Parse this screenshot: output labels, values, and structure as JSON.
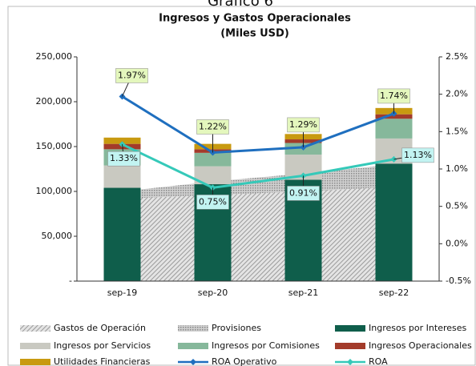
{
  "chart_data": {
    "type": "combo",
    "heading": "Gráfico 6",
    "title": "Ingresos y Gastos Operacionales",
    "subtitle": "(Miles USD)",
    "categories": [
      "sep-19",
      "sep-20",
      "sep-21",
      "sep-22"
    ],
    "ylim": [
      0,
      250000
    ],
    "yticks": [
      {
        "value": 0,
        "label": "-"
      },
      {
        "value": 50000,
        "label": "50,000"
      },
      {
        "value": 100000,
        "label": "100,000"
      },
      {
        "value": 150000,
        "label": "150,000"
      },
      {
        "value": 200000,
        "label": "200,000"
      },
      {
        "value": 250000,
        "label": "250,000"
      }
    ],
    "y2lim": [
      -0.5,
      2.5
    ],
    "y2ticks": [
      {
        "value": -0.5,
        "label": "-0.5%"
      },
      {
        "value": 0,
        "label": "0.0%"
      },
      {
        "value": 0.5,
        "label": "0.5%"
      },
      {
        "value": 1,
        "label": "1.0%"
      },
      {
        "value": 1.5,
        "label": "1.5%"
      },
      {
        "value": 2,
        "label": "2.0%"
      },
      {
        "value": 2.5,
        "label": "2.5%"
      }
    ],
    "series": [
      {
        "name": "Gastos de Operación",
        "type": "area",
        "color": "#9a9a9a",
        "values": [
          92000,
          96000,
          100000,
          105000
        ]
      },
      {
        "name": "Provisiones",
        "type": "area",
        "color": "#b4b4b4",
        "values": [
          8000,
          15000,
          20000,
          25000
        ]
      },
      {
        "name": "Ingresos por Intereses",
        "type": "bar",
        "color": "#0f5e4b",
        "values": [
          104000,
          108000,
          113000,
          131000
        ]
      },
      {
        "name": "Ingresos por Servicios",
        "type": "bar",
        "color": "#c9c9c1",
        "values": [
          25000,
          20000,
          28000,
          28000
        ]
      },
      {
        "name": "Ingresos por Comisiones",
        "type": "bar",
        "color": "#86b89b",
        "values": [
          18000,
          15000,
          13000,
          22000
        ]
      },
      {
        "name": "Ingresos Operacionales",
        "type": "bar",
        "color": "#a33b2a",
        "values": [
          6000,
          4000,
          4000,
          5000
        ]
      },
      {
        "name": "Utilidades Financieras",
        "type": "bar",
        "color": "#c89a10",
        "values": [
          7000,
          6000,
          6000,
          7000
        ]
      },
      {
        "name": "ROA Operativo",
        "type": "line",
        "axis": "y2",
        "color": "#1f6fbf",
        "label_fill": "#e4f7bd",
        "values": [
          1.97,
          1.22,
          1.29,
          1.74
        ],
        "value_labels": [
          "1.97%",
          "1.22%",
          "1.29%",
          "1.74%"
        ]
      },
      {
        "name": "ROA",
        "type": "line",
        "axis": "y2",
        "color": "#35c9b9",
        "label_fill": "#c2f4f2",
        "values": [
          1.33,
          0.75,
          0.91,
          1.13
        ],
        "value_labels": [
          "1.33%",
          "0.75%",
          "0.91%",
          "1.13%"
        ]
      }
    ]
  }
}
